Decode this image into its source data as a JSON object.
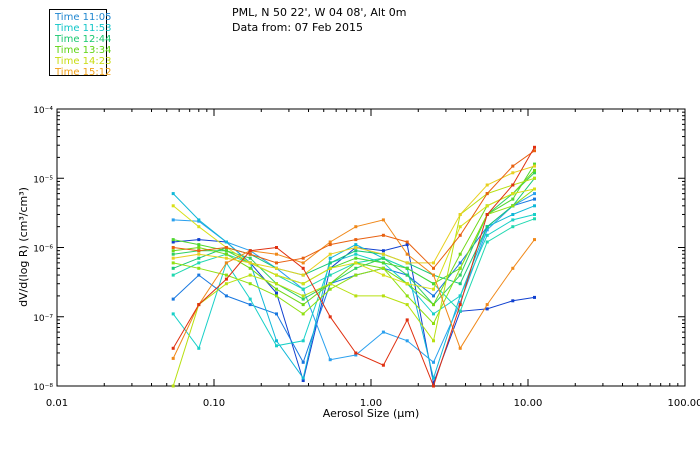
{
  "header": {
    "location": "PML, N 50 22', W 04 08', Alt 0m",
    "date": "Data from: 07 Feb 2015"
  },
  "legend": [
    {
      "label": "Time 11:05",
      "color": "#1f86d0"
    },
    {
      "label": "Time 11:53",
      "color": "#10c6c8"
    },
    {
      "label": "Time 12:44",
      "color": "#18c870"
    },
    {
      "label": "Time 13:34",
      "color": "#5fd412"
    },
    {
      "label": "Time 14:23",
      "color": "#c8dc10"
    },
    {
      "label": "Time 15:12",
      "color": "#f0a018"
    }
  ],
  "chart_data": {
    "type": "line",
    "title": "",
    "xlabel": "Aerosol Size (μm)",
    "ylabel": "dV/d(log R) (cm³/cm³)",
    "xscale": "log",
    "yscale": "log",
    "xlim": [
      0.01,
      100
    ],
    "ylim": [
      1e-08,
      0.0001
    ],
    "xtick_labels": [
      "0.01",
      "0.10",
      "1.00",
      "10.00",
      "100.00"
    ],
    "ytick_labels": [
      "10⁻⁸",
      "10⁻⁷",
      "10⁻⁶",
      "10⁻⁵",
      "10⁻⁴"
    ],
    "x": [
      0.055,
      0.08,
      0.12,
      0.17,
      0.25,
      0.37,
      0.55,
      0.8,
      1.2,
      1.7,
      2.5,
      3.7,
      5.5,
      8.0,
      11.0
    ],
    "series": [
      {
        "name": "11:05 a",
        "color": "#1040d0",
        "values": [
          1.2e-06,
          1.3e-06,
          1.2e-06,
          6e-07,
          2.2e-07,
          1.2e-08,
          5e-07,
          1e-06,
          9e-07,
          1.1e-06,
          1.1e-08,
          1.2e-07,
          1.3e-07,
          1.7e-07,
          1.9e-07
        ]
      },
      {
        "name": "11:05 b",
        "color": "#1878e0",
        "values": [
          1.8e-07,
          4e-07,
          2e-07,
          1.5e-07,
          1.1e-07,
          2.2e-08,
          3e-07,
          4e-07,
          5e-07,
          4e-07,
          2e-07,
          6e-07,
          2e-06,
          4e-06,
          5e-06
        ]
      },
      {
        "name": "11:05 c",
        "color": "#2aa0ee",
        "values": [
          2.5e-06,
          2.4e-06,
          1.2e-06,
          9e-07,
          5e-07,
          2.5e-07,
          2.4e-08,
          2.8e-08,
          6e-08,
          4.5e-08,
          2.2e-08,
          1.6e-07,
          1.8e-06,
          4e-06,
          6e-06
        ]
      },
      {
        "name": "11:53 a",
        "color": "#10b8d8",
        "values": [
          6e-06,
          2.5e-06,
          1.2e-06,
          6e-07,
          4.5e-08,
          1.3e-08,
          7e-07,
          1.1e-06,
          7e-07,
          5e-07,
          1.3e-08,
          2e-07,
          2e-06,
          3e-06,
          4e-06
        ]
      },
      {
        "name": "11:53 b",
        "color": "#18d0c8",
        "values": [
          1.1e-07,
          3.5e-08,
          6e-07,
          1.8e-07,
          3.8e-08,
          4.5e-08,
          6e-07,
          8e-07,
          6e-07,
          3e-07,
          1.1e-07,
          2e-07,
          1.5e-06,
          2.5e-06,
          3e-06
        ]
      },
      {
        "name": "11:53 c",
        "color": "#20d8b0",
        "values": [
          4e-07,
          6e-07,
          8e-07,
          6e-07,
          4e-07,
          2.5e-07,
          4e-07,
          6e-07,
          7e-07,
          5e-07,
          3e-07,
          1.2e-07,
          1.2e-06,
          2e-06,
          2.6e-06
        ]
      },
      {
        "name": "12:44 a",
        "color": "#18c878",
        "values": [
          5e-07,
          7e-07,
          1e-06,
          8e-07,
          5e-07,
          4e-07,
          6e-07,
          9e-07,
          8e-07,
          6e-07,
          4e-07,
          3e-07,
          2e-06,
          4e-06,
          1e-05
        ]
      },
      {
        "name": "12:44 b",
        "color": "#30d060",
        "values": [
          8e-07,
          9e-07,
          9e-07,
          7e-07,
          3e-07,
          1.8e-07,
          3e-07,
          5e-07,
          7e-07,
          4e-07,
          1.5e-07,
          4e-07,
          3e-06,
          6e-06,
          1.2e-05
        ]
      },
      {
        "name": "13:34 a",
        "color": "#50d830",
        "values": [
          1.3e-06,
          1.1e-06,
          9e-07,
          6e-07,
          4e-07,
          3e-07,
          5e-07,
          7e-07,
          6e-07,
          5e-07,
          3e-07,
          5e-07,
          3e-06,
          5e-06,
          1.6e-05
        ]
      },
      {
        "name": "13:34 b",
        "color": "#70d818",
        "values": [
          9e-07,
          1e-06,
          8e-07,
          5e-07,
          2.5e-07,
          1.5e-07,
          3e-07,
          6e-07,
          5e-07,
          3e-07,
          1.5e-07,
          8e-07,
          4e-06,
          6e-06,
          1.3e-05
        ]
      },
      {
        "name": "13:34 c",
        "color": "#90e010",
        "values": [
          6e-07,
          5e-07,
          4e-07,
          3e-07,
          2e-07,
          1.1e-07,
          2.5e-07,
          4e-07,
          5e-07,
          2e-07,
          8e-08,
          5e-07,
          3e-06,
          4e-06,
          7e-06
        ]
      },
      {
        "name": "14:23 a",
        "color": "#b8e010",
        "values": [
          1e-08,
          1.5e-07,
          3e-07,
          4e-07,
          3e-07,
          2e-07,
          3e-07,
          2e-07,
          2e-07,
          1.5e-07,
          4.5e-08,
          3e-06,
          6e-06,
          8e-06,
          1e-05
        ]
      },
      {
        "name": "14:23 b",
        "color": "#d8e018",
        "values": [
          4e-06,
          2e-06,
          1e-06,
          6e-07,
          4e-07,
          3e-07,
          5e-07,
          6e-07,
          4e-07,
          3e-07,
          2.5e-07,
          2e-06,
          4e-06,
          6e-06,
          7e-06
        ]
      },
      {
        "name": "14:23 c",
        "color": "#e8d020",
        "values": [
          7e-07,
          8e-07,
          7e-07,
          6e-07,
          5e-07,
          4e-07,
          8e-07,
          1e-06,
          8e-07,
          6e-07,
          6e-07,
          3e-06,
          8e-06,
          1.2e-05,
          1.5e-05
        ]
      },
      {
        "name": "15:12 a",
        "color": "#f08818",
        "values": [
          2.5e-08,
          1.5e-07,
          6e-07,
          9e-07,
          8e-07,
          6e-07,
          1.2e-06,
          2e-06,
          2.5e-06,
          8e-07,
          4e-07,
          3.5e-08,
          1.5e-07,
          5e-07,
          1.3e-06
        ]
      },
      {
        "name": "15:12 b",
        "color": "#e86010",
        "values": [
          1e-06,
          9e-07,
          1e-06,
          8e-07,
          6e-07,
          7e-07,
          1.1e-06,
          1.3e-06,
          1.5e-06,
          1.2e-06,
          5e-07,
          1.5e-06,
          6e-06,
          1.5e-05,
          2.5e-05
        ]
      },
      {
        "name": "15:12 c",
        "color": "#e03010",
        "values": [
          3.5e-08,
          1.5e-07,
          3.5e-07,
          9e-07,
          1e-06,
          5e-07,
          1e-07,
          3e-08,
          2e-08,
          9e-08,
          1e-08,
          1.5e-07,
          3e-06,
          8e-06,
          2.8e-05
        ]
      }
    ]
  }
}
